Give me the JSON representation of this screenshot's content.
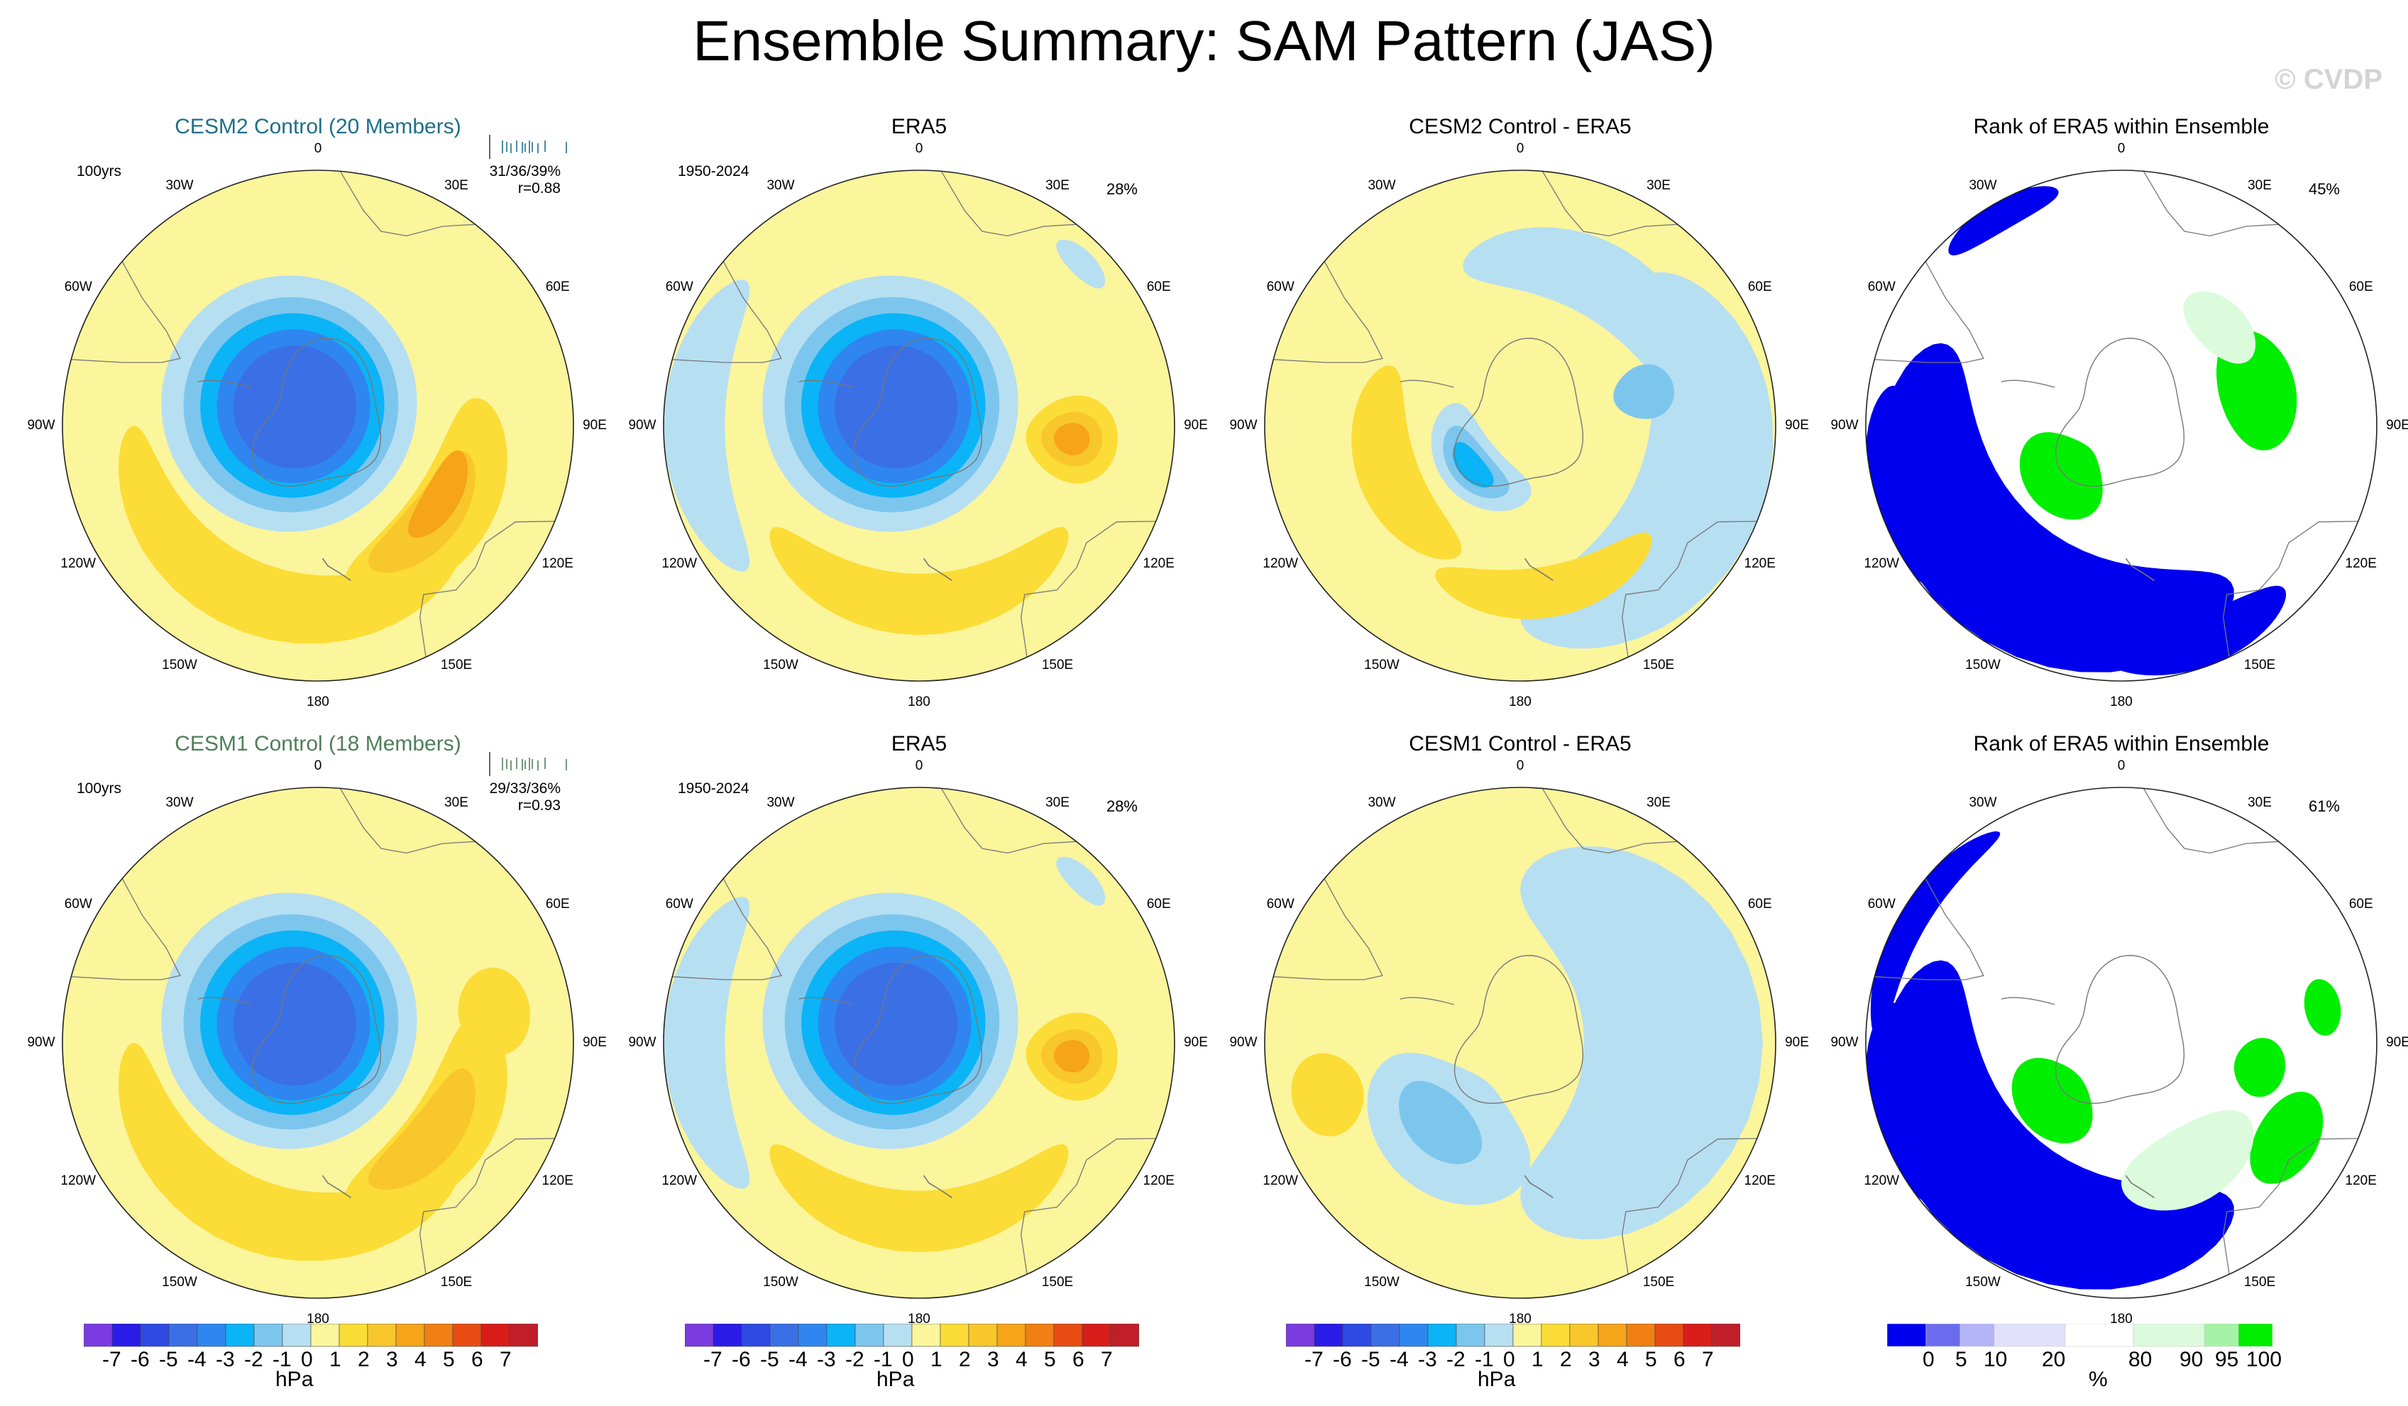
{
  "title": "Ensemble Summary: SAM Pattern (JAS)",
  "watermark": "© CVDP",
  "colors": {
    "neg7": "#7a3be0",
    "neg6": "#2a1be8",
    "neg5": "#2f49e3",
    "neg4": "#3b6fe6",
    "neg3": "#2f86f0",
    "neg2": "#0bb4f6",
    "neg1": "#7cc6ee",
    "neg0": "#b7dff2",
    "pos0": "#fbf59c",
    "pos1": "#fcdc36",
    "pos2": "#f8c72c",
    "pos3": "#f6a418",
    "pos4": "#f07f14",
    "pos5": "#e94c12",
    "pos6": "#d81d1a",
    "pos7": "#c01f2a",
    "pos8": "#f6a0a6",
    "rank0": "#0000ee",
    "rank5": "#6b6bee",
    "rank10": "#b3b3f6",
    "rank20": "#e0e0fb",
    "rank50": "#ffffff",
    "rank80": "#dcfbdc",
    "rank90": "#a6f2a6",
    "rank95": "#00ee00",
    "land": "#777777"
  },
  "lon_labels": [
    "0",
    "30E",
    "60E",
    "90E",
    "120E",
    "150E",
    "180",
    "150W",
    "120W",
    "90W",
    "60W",
    "30W"
  ],
  "panels": [
    {
      "id": "cesm2-control",
      "title": "CESM2 Control (20 Members)",
      "top_left": "100yrs",
      "top_right_1": "31/36/39%",
      "top_right_2": "r=0.88",
      "pct": ""
    },
    {
      "id": "era5-top",
      "title": "ERA5",
      "top_left": "1950-2024",
      "top_right_1": "",
      "top_right_2": "",
      "pct": "28%"
    },
    {
      "id": "cesm2-minus-era5",
      "title": "CESM2 Control - ERA5",
      "top_left": "",
      "top_right_1": "",
      "top_right_2": "",
      "pct": ""
    },
    {
      "id": "rank-top",
      "title": "Rank of ERA5 within Ensemble",
      "top_left": "",
      "top_right_1": "",
      "top_right_2": "",
      "pct": "45%"
    },
    {
      "id": "cesm1-control",
      "title": "CESM1 Control (18 Members)",
      "top_left": "100yrs",
      "top_right_1": "29/33/36%",
      "top_right_2": "r=0.93",
      "pct": ""
    },
    {
      "id": "era5-bottom",
      "title": "ERA5",
      "top_left": "1950-2024",
      "top_right_1": "",
      "top_right_2": "",
      "pct": "28%"
    },
    {
      "id": "cesm1-minus-era5",
      "title": "CESM1 Control - ERA5",
      "top_left": "",
      "top_right_1": "",
      "top_right_2": "",
      "pct": ""
    },
    {
      "id": "rank-bottom",
      "title": "Rank of ERA5 within Ensemble",
      "top_left": "",
      "top_right_1": "",
      "top_right_2": "",
      "pct": "61%"
    }
  ],
  "colorbar_hpa": {
    "labels": [
      "-7",
      "-6",
      "-5",
      "-4",
      "-3",
      "-2",
      "-1",
      "0",
      "1",
      "2",
      "3",
      "4",
      "5",
      "6",
      "7"
    ],
    "units": "hPa"
  },
  "colorbar_rank": {
    "labels": [
      "0",
      "5",
      "10",
      "20",
      "80",
      "90",
      "95",
      "100"
    ],
    "units": "%"
  },
  "chart_data": [
    {
      "type": "heatmap",
      "title": "CESM2 Control (20 Members)",
      "projection": "south polar stereographic",
      "units": "hPa",
      "levels": [
        -7,
        -6,
        -5,
        -4,
        -3,
        -2,
        -1,
        0,
        1,
        2,
        3,
        4,
        5,
        6,
        7
      ],
      "pattern": "negative center over Antarctica (about -5 hPa), positive mid-latitude ring (about +3 hPa near 120E)",
      "member_count": 20,
      "years": "100yrs",
      "explained_variance": "31/36/39%",
      "pattern_correlation": 0.88
    },
    {
      "type": "heatmap",
      "title": "ERA5",
      "projection": "south polar stereographic",
      "units": "hPa",
      "years": "1950-2024",
      "explained_variance": "28%",
      "pattern": "negative center about -5 hPa, positive lobe about +4 hPa near 90E"
    },
    {
      "type": "heatmap",
      "title": "CESM2 Control - ERA5",
      "projection": "south polar stereographic",
      "units": "hPa",
      "pattern": "negative near 120W (about -3 hPa), positive bands (about +2 hPa)"
    },
    {
      "type": "heatmap",
      "title": "Rank of ERA5 within Ensemble",
      "projection": "south polar stereographic",
      "units": "%",
      "levels": [
        0,
        5,
        10,
        20,
        80,
        90,
        95,
        100
      ],
      "area_pct": "45%"
    },
    {
      "type": "heatmap",
      "title": "CESM1 Control (18 Members)",
      "projection": "south polar stereographic",
      "units": "hPa",
      "member_count": 18,
      "years": "100yrs",
      "explained_variance": "29/33/36%",
      "pattern_correlation": 0.93
    },
    {
      "type": "heatmap",
      "title": "ERA5",
      "projection": "south polar stereographic",
      "units": "hPa",
      "years": "1950-2024",
      "explained_variance": "28%"
    },
    {
      "type": "heatmap",
      "title": "CESM1 Control - ERA5",
      "projection": "south polar stereographic",
      "units": "hPa",
      "pattern": "weak differences, mostly -1 to +1 hPa"
    },
    {
      "type": "heatmap",
      "title": "Rank of ERA5 within Ensemble",
      "projection": "south polar stereographic",
      "units": "%",
      "levels": [
        0,
        5,
        10,
        20,
        80,
        90,
        95,
        100
      ],
      "area_pct": "61%"
    }
  ]
}
